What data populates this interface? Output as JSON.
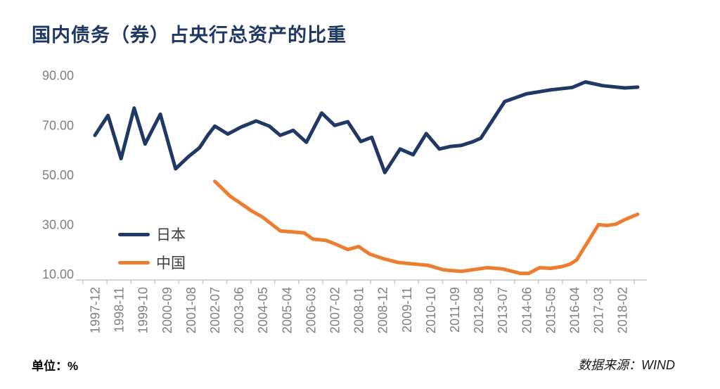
{
  "title": "国内债务（券）占央行总资产的比重",
  "footer": {
    "unit_label": "单位：%",
    "source_label": "数据来源：WIND"
  },
  "colors": {
    "title": "#1f3864",
    "axis_line": "#c9c9c9",
    "tick_label": "#7f7f7f",
    "legend_text": "#3d3d3d"
  },
  "chart_data": {
    "type": "line",
    "title": "国内债务（券）占央行总资产的比重",
    "unit": "%",
    "source": "WIND",
    "grid": false,
    "legend_position": "inside-left-bottom",
    "ylim": [
      10,
      90
    ],
    "y_ticks": [
      90,
      70,
      50,
      30,
      10
    ],
    "y_tick_format": "0.00",
    "x_unit": "months since 1997-12",
    "x_tick_month_index": [
      0,
      11,
      22,
      33,
      44,
      55,
      66,
      77,
      88,
      99,
      110,
      121,
      132,
      143,
      154,
      165,
      176,
      187,
      198,
      209,
      220,
      231,
      242
    ],
    "x_tick_labels": [
      "1997-12",
      "1998-11",
      "1999-10",
      "2000-09",
      "2001-08",
      "2002-07",
      "2003-06",
      "2004-05",
      "2005-04",
      "2006-03",
      "2007-02",
      "2008-01",
      "2008-12",
      "2009-11",
      "2010-10",
      "2011-09",
      "2012-08",
      "2013-07",
      "2014-06",
      "2015-05",
      "2016-04",
      "2017-03",
      "2018-02"
    ],
    "series": [
      {
        "name": "日本",
        "color": "#1f3864",
        "points": [
          [
            0,
            66
          ],
          [
            6,
            74
          ],
          [
            12,
            56.6
          ],
          [
            18,
            77
          ],
          [
            23,
            62.5
          ],
          [
            30,
            74.5
          ],
          [
            37,
            52.5
          ],
          [
            43,
            57.5
          ],
          [
            48,
            61
          ],
          [
            52,
            66.3
          ],
          [
            55,
            69.7
          ],
          [
            61,
            66.5
          ],
          [
            67,
            69.3
          ],
          [
            74,
            71.8
          ],
          [
            80,
            69.7
          ],
          [
            85,
            66
          ],
          [
            91,
            68
          ],
          [
            97,
            63.2
          ],
          [
            104,
            75
          ],
          [
            110,
            70
          ],
          [
            116,
            71.5
          ],
          [
            122,
            63.5
          ],
          [
            127,
            65.2
          ],
          [
            133,
            51
          ],
          [
            140,
            60.5
          ],
          [
            146,
            58.2
          ],
          [
            152,
            66.7
          ],
          [
            158,
            60.5
          ],
          [
            163,
            61.5
          ],
          [
            168,
            61.9
          ],
          [
            173,
            63.3
          ],
          [
            177,
            64.8
          ],
          [
            188,
            79.6
          ],
          [
            198,
            82.7
          ],
          [
            209,
            84.3
          ],
          [
            219,
            85.3
          ],
          [
            225,
            87.5
          ],
          [
            233,
            86
          ],
          [
            243,
            85.1
          ],
          [
            249,
            85.4
          ]
        ]
      },
      {
        "name": "中国",
        "color": "#ed7d31",
        "points": [
          [
            55,
            47.5
          ],
          [
            62,
            41.5
          ],
          [
            72,
            35.5
          ],
          [
            77,
            33
          ],
          [
            85,
            27.5
          ],
          [
            96,
            26.7
          ],
          [
            100,
            24.2
          ],
          [
            106,
            23.7
          ],
          [
            110,
            22.3
          ],
          [
            113,
            21.2
          ],
          [
            116,
            20
          ],
          [
            121,
            21.2
          ],
          [
            126,
            18.2
          ],
          [
            132,
            16.4
          ],
          [
            139,
            14.8
          ],
          [
            147,
            14.1
          ],
          [
            153,
            13.6
          ],
          [
            160,
            11.8
          ],
          [
            168,
            11.2
          ],
          [
            180,
            12.7
          ],
          [
            187,
            12.2
          ],
          [
            195,
            10.4
          ],
          [
            199,
            10.4
          ],
          [
            204,
            12.7
          ],
          [
            209,
            12.4
          ],
          [
            214,
            13.1
          ],
          [
            218,
            14.1
          ],
          [
            221,
            15.8
          ],
          [
            231,
            30
          ],
          [
            235,
            29.7
          ],
          [
            239,
            30.2
          ],
          [
            243,
            32
          ],
          [
            249,
            34.2
          ]
        ]
      }
    ]
  }
}
